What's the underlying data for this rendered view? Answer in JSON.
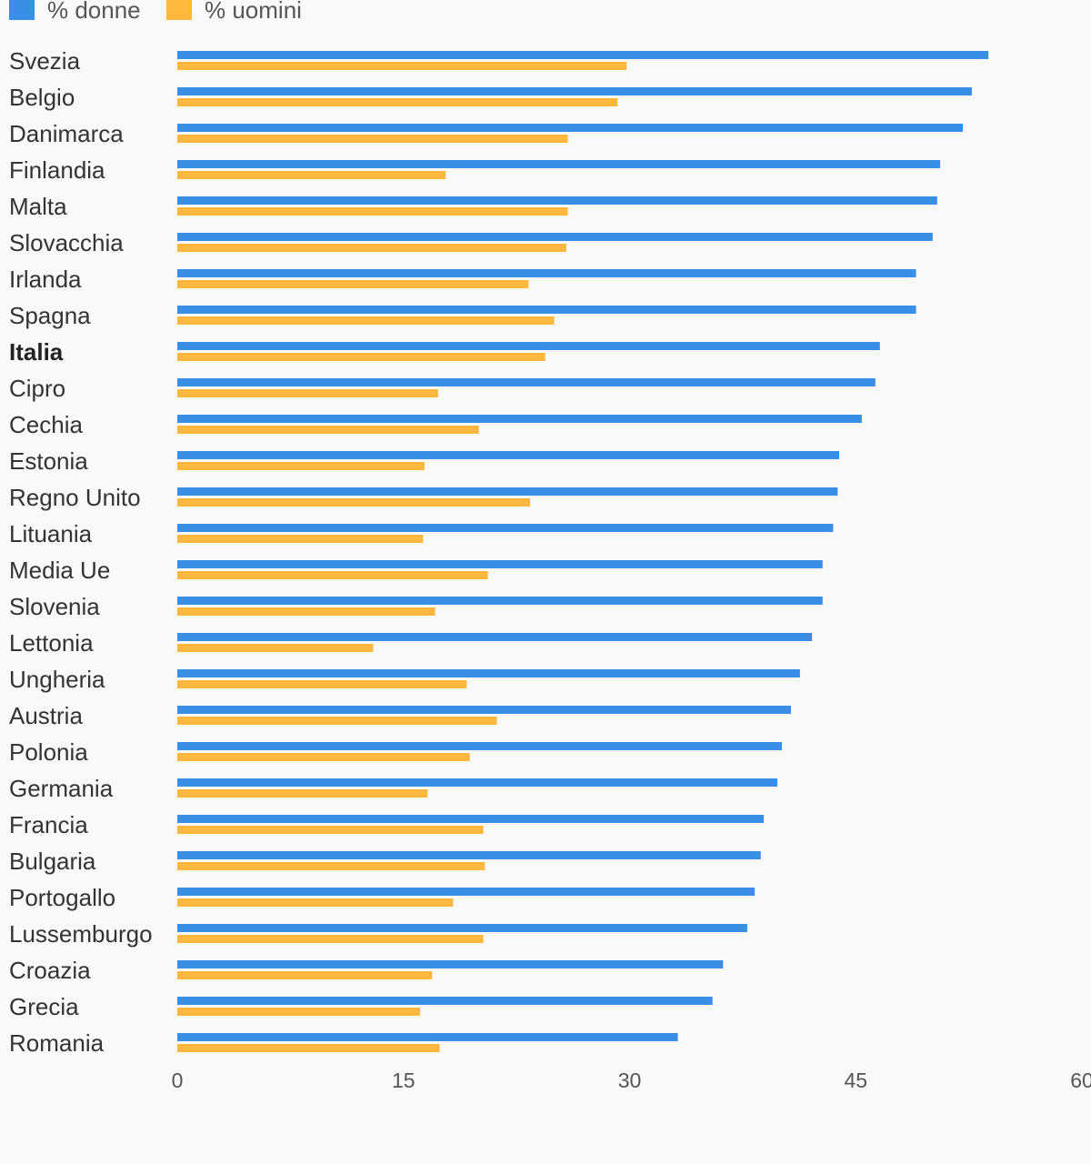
{
  "chart_data": {
    "type": "bar",
    "orientation": "horizontal",
    "categories": [
      "Svezia",
      "Belgio",
      "Danimarca",
      "Finlandia",
      "Malta",
      "Slovacchia",
      "Irlanda",
      "Spagna",
      "Italia",
      "Cipro",
      "Cechia",
      "Estonia",
      "Regno Unito",
      "Lituania",
      "Media Ue",
      "Slovenia",
      "Lettonia",
      "Ungheria",
      "Austria",
      "Polonia",
      "Germania",
      "Francia",
      "Bulgaria",
      "Portogallo",
      "Lussemburgo",
      "Croazia",
      "Grecia",
      "Romania"
    ],
    "highlighted_category": "Italia",
    "series": [
      {
        "name": "% donne",
        "color": "#3a8ee6",
        "values": [
          53.8,
          52.7,
          52.1,
          50.6,
          50.4,
          50.1,
          49.0,
          49.0,
          46.6,
          46.3,
          45.4,
          43.9,
          43.8,
          43.5,
          42.8,
          42.8,
          42.1,
          41.3,
          40.7,
          40.1,
          39.8,
          38.9,
          38.7,
          38.3,
          37.8,
          36.2,
          35.5,
          33.2
        ]
      },
      {
        "name": "% uomini",
        "color": "#ffb83d",
        "values": [
          29.8,
          29.2,
          25.9,
          17.8,
          25.9,
          25.8,
          23.3,
          25.0,
          24.4,
          17.3,
          20.0,
          16.4,
          23.4,
          16.3,
          20.6,
          17.1,
          13.0,
          19.2,
          21.2,
          19.4,
          16.6,
          20.3,
          20.4,
          18.3,
          20.3,
          16.9,
          16.1,
          17.4
        ]
      }
    ],
    "xlim": [
      0,
      60
    ],
    "xticks": [
      "0",
      "15",
      "30",
      "45",
      "60"
    ],
    "legend_position": "top-left",
    "grid": false
  }
}
